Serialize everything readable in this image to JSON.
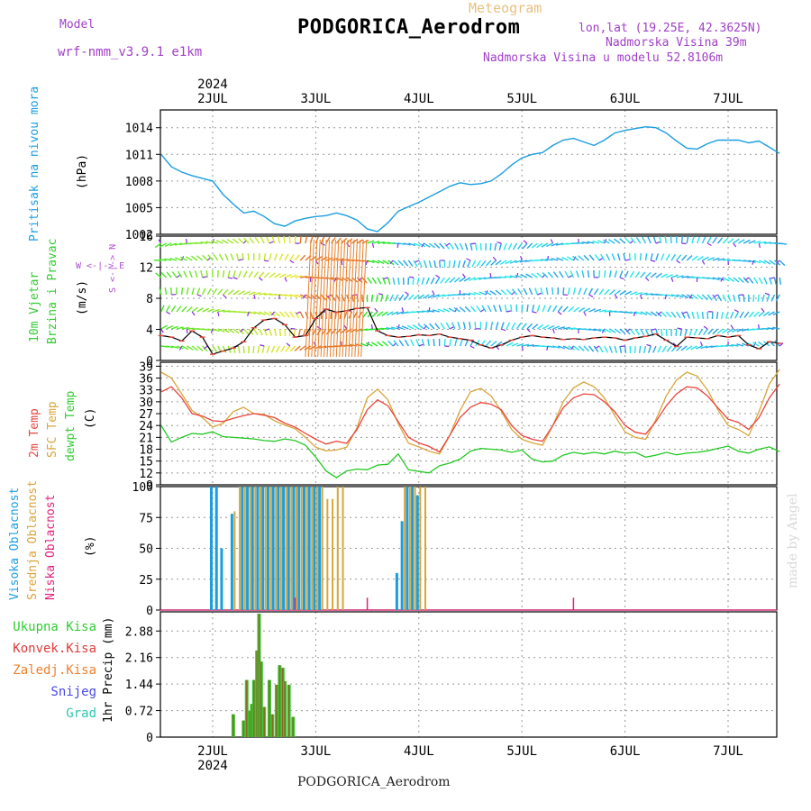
{
  "header": {
    "model_label": "Model",
    "model_name": "wrf-nmm_v3.9.1 e1km",
    "product": "Meteogram",
    "station": "PODGORICA_Aerodrom",
    "lonlat": "lon,lat (19.25E, 42.3625N)",
    "altitude": "Nadmorska Visina 39m",
    "model_altitude": "Nadmorska Visina u modelu 52.8106m",
    "footer_station": "PODGORICA_Aerodrom",
    "credit": "made by Angel"
  },
  "colors": {
    "pressure": "#1a9ee0",
    "temp2m": "#e8453c",
    "sfc_temp": "#d9a53a",
    "dewpt": "#22c922",
    "cloud_high": "#1a9ee0",
    "cloud_mid": "#d9a53a",
    "cloud_low": "#e0207a",
    "rain_total": "#33cc33",
    "rain_conv": "#e03a3a",
    "rain_frozen": "#f08030",
    "snow": "#4848e8",
    "graupel": "#2ec8b0",
    "wind_line": "#000000",
    "wind_marks": "#e8453c"
  },
  "chart_data": [
    {
      "type": "line",
      "panel": "pressure",
      "ylabel_main": "Pritisak na nivou mora",
      "ylabel_unit": "(hPa)",
      "ylim": [
        1002,
        1016
      ],
      "yticks": [
        1002,
        1005,
        1008,
        1011,
        1014
      ],
      "grid": true,
      "x_top_labels": [
        "2JUL",
        "3JUL",
        "4JUL",
        "5JUL",
        "6JUL",
        "7JUL"
      ],
      "x_top_year": "2024",
      "x": [
        1.5,
        1.6,
        1.7,
        1.8,
        1.9,
        2.0,
        2.1,
        2.2,
        2.3,
        2.4,
        2.5,
        2.6,
        2.7,
        2.8,
        2.9,
        3.0,
        3.1,
        3.2,
        3.3,
        3.4,
        3.5,
        3.6,
        3.7,
        3.8,
        3.9,
        4.0,
        4.1,
        4.2,
        4.3,
        4.4,
        4.5,
        4.6,
        4.7,
        4.8,
        4.9,
        5.0,
        5.1,
        5.2,
        5.3,
        5.4,
        5.5,
        5.6,
        5.7,
        5.8,
        5.9,
        6.0,
        6.1,
        6.2,
        6.3,
        6.4,
        6.5,
        6.6,
        6.7,
        6.8,
        6.9,
        7.0,
        7.1,
        7.2,
        7.3,
        7.4,
        7.5
      ],
      "series": [
        {
          "values": [
            1011.0,
            1009.6,
            1009.0,
            1008.6,
            1008.3,
            1008.0,
            1006.5,
            1005.4,
            1004.4,
            1004.6,
            1004.0,
            1003.2,
            1002.9,
            1003.5,
            1003.8,
            1004.0,
            1004.1,
            1004.4,
            1004.1,
            1003.6,
            1002.6,
            1002.3,
            1003.3,
            1004.6,
            1005.1,
            1005.6,
            1006.2,
            1006.8,
            1007.4,
            1007.8,
            1007.6,
            1007.7,
            1008.0,
            1008.8,
            1009.8,
            1010.6,
            1011.0,
            1011.2,
            1012.0,
            1012.6,
            1012.8,
            1012.4,
            1012.0,
            1012.6,
            1013.4,
            1013.7,
            1013.9,
            1014.1,
            1014.0,
            1013.4,
            1012.5,
            1011.7,
            1011.6,
            1012.2,
            1012.6,
            1012.6,
            1012.6,
            1012.3,
            1012.5,
            1011.8,
            1011.1
          ]
        }
      ]
    },
    {
      "type": "line",
      "panel": "wind",
      "ylabel_main": "10m Vjetar",
      "ylabel_main2": "Brzina i Pravac",
      "ylabel_unit": "(m/s)",
      "compass": "W <-|-> E",
      "compass_ns": "S <-|-> N",
      "ylim": [
        0,
        16
      ],
      "yticks": [
        0,
        4,
        8,
        12,
        16
      ],
      "grid": true,
      "x": [
        1.5,
        1.6,
        1.7,
        1.8,
        1.9,
        2.0,
        2.1,
        2.2,
        2.3,
        2.4,
        2.5,
        2.6,
        2.7,
        2.8,
        2.9,
        3.0,
        3.1,
        3.2,
        3.3,
        3.4,
        3.5,
        3.6,
        3.7,
        3.8,
        3.9,
        4.0,
        4.1,
        4.2,
        4.3,
        4.4,
        4.5,
        4.6,
        4.7,
        4.8,
        4.9,
        5.0,
        5.1,
        5.2,
        5.3,
        5.4,
        5.5,
        5.6,
        5.7,
        5.8,
        5.9,
        6.0,
        6.1,
        6.2,
        6.3,
        6.4,
        6.5,
        6.6,
        6.7,
        6.8,
        6.9,
        7.0,
        7.1,
        7.2,
        7.3,
        7.4,
        7.5
      ],
      "series": [
        {
          "values": [
            3.2,
            3.0,
            2.5,
            3.8,
            3.0,
            0.8,
            1.2,
            1.6,
            2.4,
            4.2,
            5.2,
            5.4,
            4.6,
            3.0,
            3.2,
            5.4,
            6.6,
            6.2,
            6.4,
            6.7,
            6.8,
            3.8,
            3.2,
            3.0,
            3.1,
            3.3,
            3.2,
            3.4,
            3.0,
            2.8,
            2.6,
            2.0,
            1.6,
            2.0,
            2.6,
            3.0,
            3.2,
            3.0,
            2.9,
            2.7,
            2.8,
            2.7,
            2.9,
            3.0,
            2.9,
            2.6,
            2.9,
            3.1,
            3.4,
            2.6,
            1.8,
            3.0,
            2.9,
            2.8,
            3.2,
            3.0,
            3.2,
            2.0,
            1.5,
            2.4,
            2.2
          ]
        }
      ]
    },
    {
      "type": "line",
      "panel": "temperature",
      "ylabel_main": "2m Temp",
      "ylabel_main2": "SFC Temp",
      "ylabel_main3": "dewpt Temp",
      "ylabel_unit": "(C)",
      "ylim": [
        9,
        40
      ],
      "yticks": [
        9,
        12,
        15,
        18,
        21,
        24,
        27,
        30,
        33,
        36,
        39
      ],
      "grid": true,
      "x": [
        1.5,
        1.6,
        1.7,
        1.8,
        1.9,
        2.0,
        2.1,
        2.2,
        2.3,
        2.4,
        2.5,
        2.6,
        2.7,
        2.8,
        2.9,
        3.0,
        3.1,
        3.2,
        3.3,
        3.4,
        3.5,
        3.6,
        3.7,
        3.8,
        3.9,
        4.0,
        4.1,
        4.2,
        4.3,
        4.4,
        4.5,
        4.6,
        4.7,
        4.8,
        4.9,
        5.0,
        5.1,
        5.2,
        5.3,
        5.4,
        5.5,
        5.6,
        5.7,
        5.8,
        5.9,
        6.0,
        6.1,
        6.2,
        6.3,
        6.4,
        6.5,
        6.6,
        6.7,
        6.8,
        6.9,
        7.0,
        7.1,
        7.2,
        7.3,
        7.4,
        7.5
      ],
      "series": [
        {
          "values": [
            32.5,
            33.8,
            31.0,
            27.0,
            26.4,
            25.2,
            25.0,
            25.8,
            26.5,
            27.0,
            26.6,
            26.0,
            24.6,
            23.6,
            22.0,
            20.5,
            19.3,
            20.0,
            19.5,
            23.0,
            28.0,
            30.5,
            29.0,
            25.0,
            21.0,
            19.6,
            18.7,
            17.3,
            21.5,
            26.0,
            28.6,
            29.8,
            29.4,
            28.0,
            24.0,
            21.5,
            20.5,
            20.0,
            24.0,
            28.5,
            31.0,
            32.0,
            31.8,
            30.0,
            27.5,
            24.0,
            22.3,
            21.8,
            25.0,
            29.0,
            32.0,
            33.8,
            33.5,
            31.5,
            28.5,
            25.6,
            24.8,
            23.0,
            26.0,
            31.0,
            34.5
          ]
        },
        {
          "values": [
            37.5,
            36.0,
            32.0,
            27.8,
            26.0,
            23.6,
            24.5,
            27.5,
            28.6,
            27.0,
            26.8,
            25.2,
            24.1,
            23.2,
            21.0,
            18.5,
            17.6,
            17.8,
            18.5,
            23.5,
            31.0,
            33.2,
            30.5,
            24.5,
            19.5,
            18.6,
            17.5,
            16.8,
            21.5,
            27.8,
            32.5,
            33.4,
            31.5,
            27.6,
            23.0,
            20.5,
            19.6,
            19.0,
            24.0,
            30.0,
            33.5,
            35.0,
            33.8,
            31.0,
            26.5,
            22.4,
            21.0,
            20.5,
            25.5,
            31.5,
            35.5,
            37.5,
            36.5,
            33.0,
            28.0,
            24.0,
            23.0,
            21.4,
            27.5,
            34.5,
            38.2
          ]
        },
        {
          "values": [
            24.0,
            19.8,
            21.0,
            22.0,
            21.8,
            22.4,
            21.2,
            21.0,
            20.8,
            20.6,
            20.2,
            20.0,
            20.6,
            20.2,
            19.0,
            16.0,
            12.5,
            10.8,
            12.5,
            13.0,
            12.8,
            14.0,
            14.2,
            16.8,
            12.8,
            12.4,
            12.0,
            13.8,
            14.5,
            15.5,
            17.5,
            18.2,
            18.0,
            17.8,
            17.2,
            17.8,
            15.5,
            14.8,
            15.0,
            16.5,
            17.2,
            16.8,
            17.2,
            16.8,
            17.5,
            17.0,
            17.2,
            16.0,
            16.5,
            17.2,
            16.6,
            17.0,
            17.2,
            17.6,
            18.2,
            18.8,
            17.5,
            17.0,
            18.0,
            18.6,
            17.4
          ]
        }
      ]
    },
    {
      "type": "bar",
      "panel": "clouds",
      "ylabel_main": "Visoka Oblacnost",
      "ylabel_main2": "Srednja Oblacnost",
      "ylabel_main3": "Niska Oblacnost",
      "ylabel_unit": "(%)",
      "ylim": [
        0,
        100
      ],
      "yticks": [
        0,
        25,
        50,
        75,
        100
      ],
      "grid": true,
      "x": [
        2.0,
        2.05,
        2.1,
        2.15,
        2.2,
        2.25,
        2.3,
        2.35,
        2.4,
        2.45,
        2.5,
        2.55,
        2.6,
        2.65,
        2.7,
        2.75,
        2.8,
        2.85,
        2.9,
        2.95,
        3.0,
        3.05,
        3.1,
        3.15,
        3.2,
        3.25,
        3.5,
        3.8,
        3.85,
        3.9,
        3.95,
        4.0,
        4.05,
        5.5
      ],
      "series": [
        {
          "name": "Visoka Oblacnost",
          "values": [
            100,
            100,
            50,
            0,
            78,
            0,
            100,
            100,
            100,
            100,
            100,
            100,
            100,
            100,
            100,
            100,
            100,
            100,
            100,
            100,
            100,
            100,
            0,
            0,
            0,
            0,
            0,
            30,
            72,
            100,
            100,
            93,
            0,
            0
          ]
        },
        {
          "name": "Srednja Oblacnost",
          "values": [
            0,
            0,
            0,
            0,
            80,
            100,
            100,
            100,
            100,
            100,
            100,
            100,
            100,
            100,
            100,
            100,
            100,
            100,
            100,
            100,
            100,
            100,
            90,
            90,
            100,
            100,
            0,
            0,
            100,
            100,
            100,
            100,
            100,
            0
          ]
        },
        {
          "name": "Niska Oblacnost",
          "values": [
            0,
            0,
            0,
            0,
            0,
            0,
            0,
            0,
            0,
            0,
            0,
            0,
            0,
            0,
            0,
            0,
            10,
            0,
            0,
            0,
            0,
            0,
            0,
            0,
            0,
            0,
            10,
            0,
            0,
            0,
            0,
            0,
            0,
            10
          ]
        }
      ]
    },
    {
      "type": "bar",
      "panel": "precip",
      "ylabel_main": "1hr Precip",
      "ylabel_unit": "(mm)",
      "ylim": [
        0,
        3.4
      ],
      "yticks": [
        0,
        0.72,
        1.44,
        2.16,
        2.88
      ],
      "grid": true,
      "x_bottom_labels": [
        "2JUL",
        "3JUL",
        "4JUL",
        "5JUL",
        "6JUL",
        "7JUL"
      ],
      "x_bottom_year": "2024",
      "legend": [
        "Ukupna Kisa",
        "Konvek.Kisa",
        "Zaledj.Kisa",
        "Snijeg",
        "Grad"
      ],
      "x": [
        2.2,
        2.25,
        2.3,
        2.33,
        2.36,
        2.38,
        2.4,
        2.43,
        2.45,
        2.47,
        2.5,
        2.55,
        2.58,
        2.62,
        2.65,
        2.68,
        2.7,
        2.74,
        2.78,
        2.82
      ],
      "series": [
        {
          "name": "Ukupna Kisa",
          "values": [
            0.62,
            0.0,
            0.45,
            1.55,
            0.72,
            0.9,
            1.55,
            2.35,
            3.35,
            2.05,
            0.82,
            1.55,
            0.62,
            1.42,
            1.95,
            1.88,
            1.52,
            1.42,
            0.55,
            0.0
          ]
        },
        {
          "name": "Konvek.Kisa",
          "values": [
            0.62,
            0.0,
            0.45,
            1.55,
            0.72,
            0.9,
            1.55,
            2.35,
            3.35,
            2.05,
            0.82,
            1.55,
            0.62,
            1.42,
            1.95,
            1.88,
            1.52,
            1.42,
            0.55,
            0.0
          ]
        }
      ]
    }
  ]
}
